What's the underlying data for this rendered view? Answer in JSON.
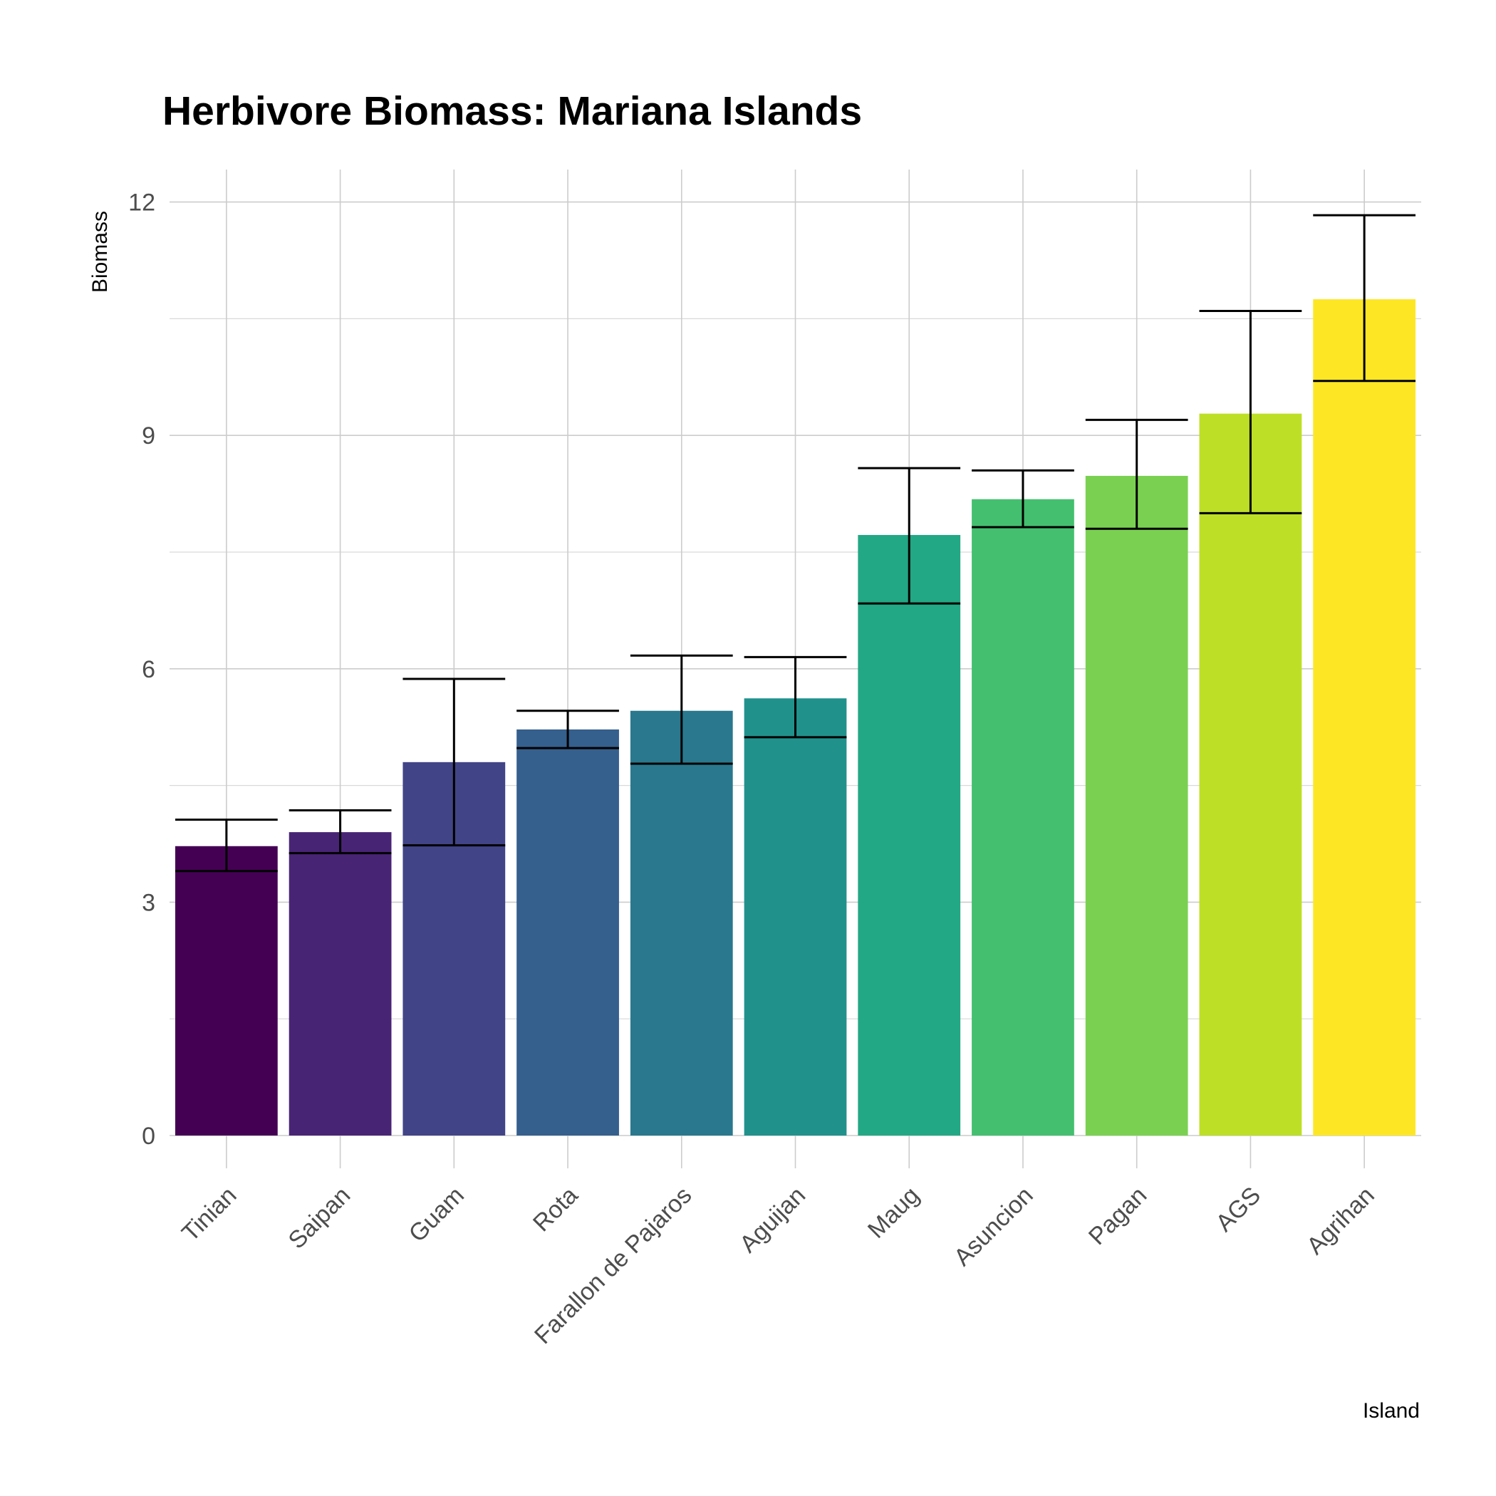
{
  "chart_data": {
    "type": "bar",
    "title": "Herbivore Biomass: Mariana Islands",
    "xlabel": "Island",
    "ylabel": "Biomass",
    "ylim": [
      -0.6,
      12.85
    ],
    "y_ticks": [
      0,
      3,
      6,
      9,
      12
    ],
    "y_tick_labels": [
      "0",
      "3",
      "6",
      "9",
      "12"
    ],
    "grid": true,
    "categories": [
      "Tinian",
      "Saipan",
      "Guam",
      "Rota",
      "Farallon de Pajaros",
      "Aguijan",
      "Maug",
      "Asuncion",
      "Pagan",
      "AGS",
      "Agrihan"
    ],
    "values": [
      3.72,
      3.9,
      4.8,
      5.22,
      5.46,
      5.62,
      7.72,
      8.18,
      8.48,
      9.28,
      10.75
    ],
    "error_low": [
      3.4,
      3.63,
      3.73,
      4.98,
      4.78,
      5.12,
      6.84,
      7.82,
      7.8,
      8.0,
      9.7
    ],
    "error_high": [
      4.06,
      4.18,
      5.87,
      5.46,
      6.17,
      6.15,
      8.58,
      8.55,
      9.2,
      10.6,
      11.83
    ],
    "colors": [
      "#440154",
      "#482475",
      "#414487",
      "#355f8d",
      "#2a788e",
      "#21918c",
      "#22a884",
      "#44bf70",
      "#7ad151",
      "#bddf26",
      "#fde725"
    ]
  }
}
